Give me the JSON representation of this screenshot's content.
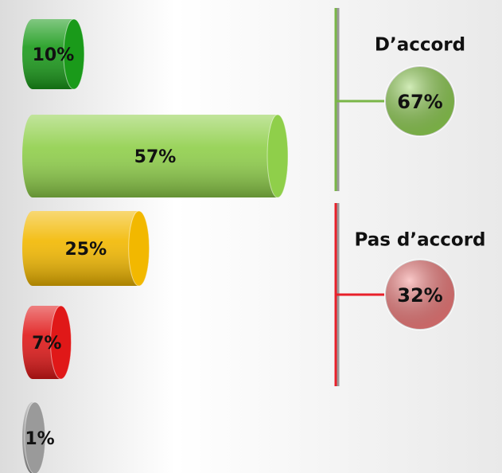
{
  "chart_data": {
    "type": "bar",
    "categories": [
      null,
      null,
      null,
      null,
      null
    ],
    "values": [
      10,
      57,
      25,
      7,
      1
    ],
    "value_labels": [
      "10%",
      "57%",
      "25%",
      "7%",
      "1%"
    ],
    "colors": [
      "#1a9a1a",
      "#8fcf4a",
      "#f2b800",
      "#e01818",
      "#9a9a9a"
    ],
    "groups": [
      {
        "label": "D’accord",
        "value": 67,
        "value_label": "67%",
        "color": "#8fd14f",
        "line_color": "#7ab648"
      },
      {
        "label": "Pas d’accord",
        "value": 32,
        "value_label": "32%",
        "color": "#f47a7a",
        "line_color": "#e8202a"
      }
    ]
  }
}
